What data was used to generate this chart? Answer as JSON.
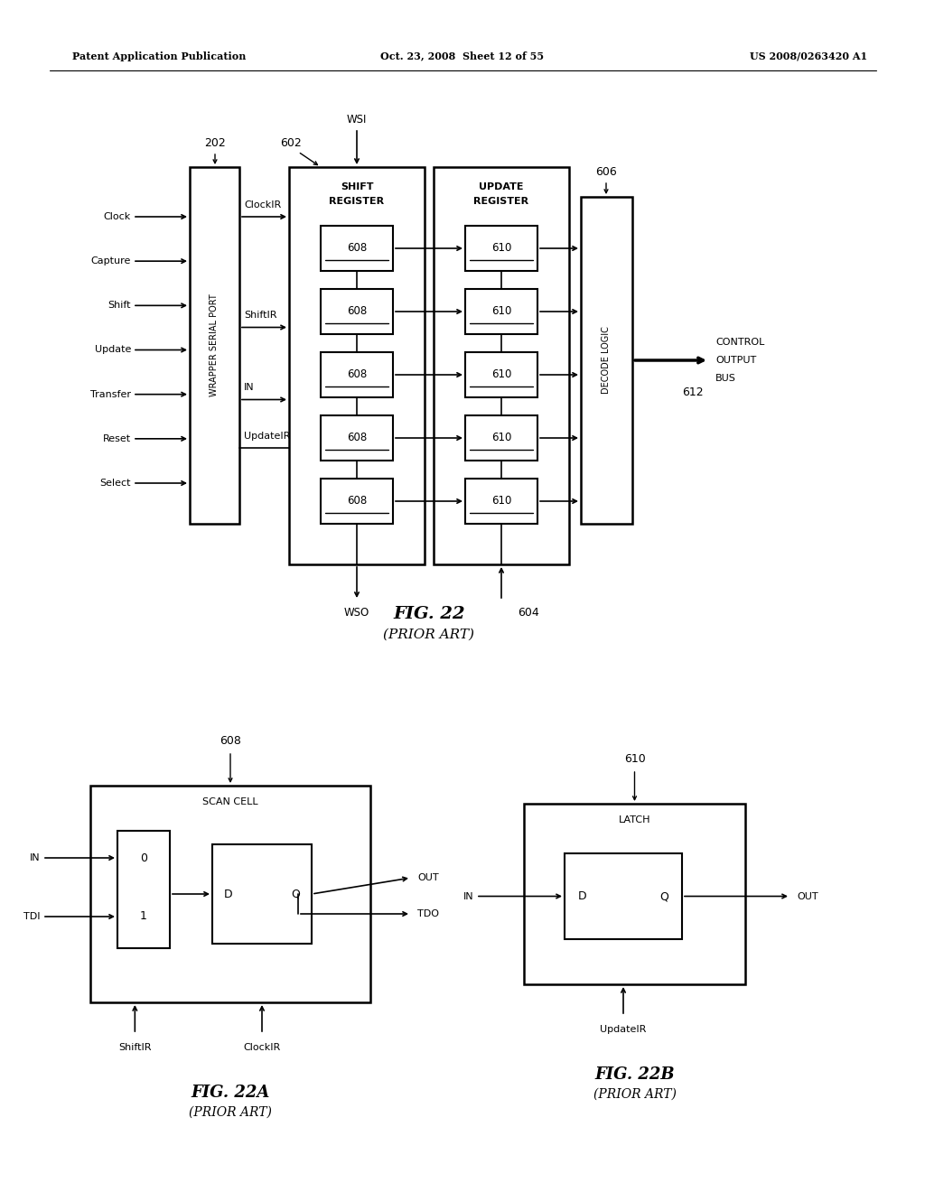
{
  "header_left": "Patent Application Publication",
  "header_mid": "Oct. 23, 2008  Sheet 12 of 55",
  "header_right": "US 2008/0263420 A1",
  "bg_color": "#ffffff",
  "fig22_title": "FIG. 22",
  "fig22_subtitle": "(PRIOR ART)",
  "fig22a_title": "FIG. 22A",
  "fig22a_subtitle": "(PRIOR ART)",
  "fig22b_title": "FIG. 22B",
  "fig22b_subtitle": "(PRIOR ART)"
}
